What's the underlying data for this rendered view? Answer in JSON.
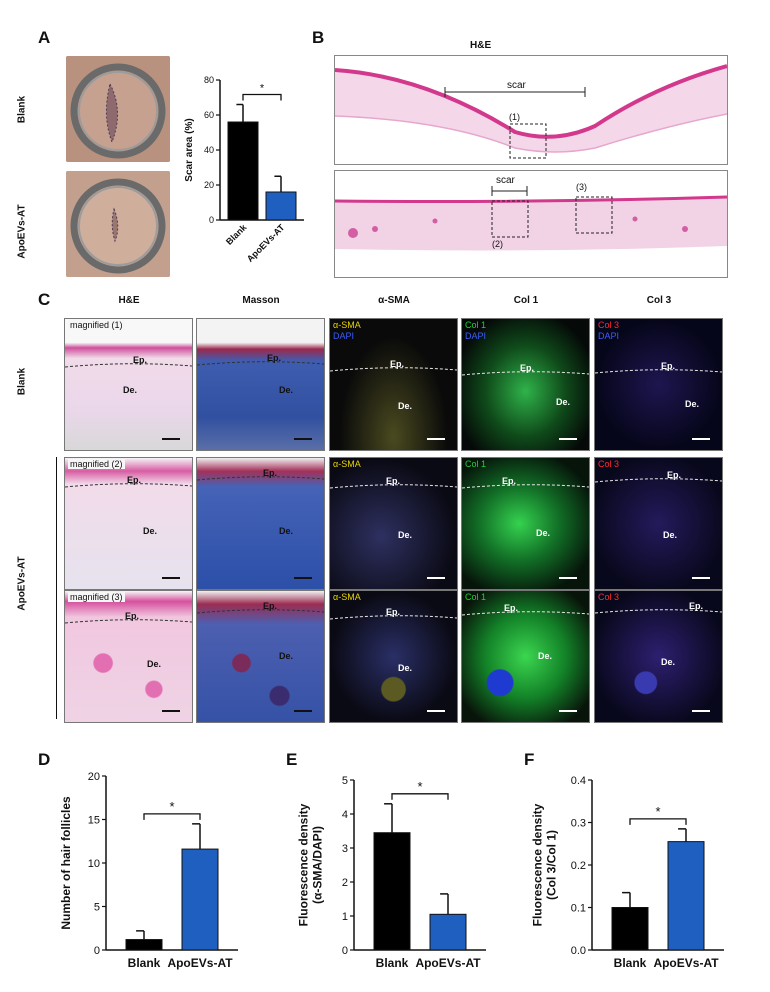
{
  "panels": {
    "A": "A",
    "B": "B",
    "C": "C",
    "D": "D",
    "E": "E",
    "F": "F"
  },
  "panel_a": {
    "row_labels": [
      "Blank",
      "ApoEVs-AT"
    ]
  },
  "panel_b": {
    "title": "H&E",
    "scar_label": "scar",
    "markers": [
      "(1)",
      "(2)",
      "(3)"
    ]
  },
  "panel_c": {
    "columns": [
      "H&E",
      "Masson",
      "α-SMA",
      "Col 1",
      "Col 3"
    ],
    "row_labels": [
      "Blank",
      "ApoEVs-AT"
    ],
    "magnified": [
      "magnified (1)",
      "magnified (2)",
      "magnified (3)"
    ],
    "channel_tags": {
      "asma": "α-SMA",
      "col1": "Col 1",
      "col3": "Col 3",
      "dapi": "DAPI"
    },
    "ep": "Ep.",
    "de": "De.",
    "colors": {
      "asma": "#e8d400",
      "col1": "#22d03a",
      "col3": "#ff2a2a",
      "dapi": "#3b5cff",
      "he": "#d77fb3",
      "masson": "#3d58a8"
    }
  },
  "chart_data": [
    {
      "panel": "A",
      "type": "bar",
      "categories": [
        "Blank",
        "ApoEVs-AT"
      ],
      "values": [
        56,
        16
      ],
      "errors": [
        10,
        9
      ],
      "colors": [
        "#000000",
        "#1f5fbf"
      ],
      "ylabel": "Scar area (%)",
      "ylim": [
        0,
        80
      ],
      "yticks": [
        0,
        20,
        40,
        60,
        80
      ],
      "significance": "*"
    },
    {
      "panel": "D",
      "type": "bar",
      "categories": [
        "Blank",
        "ApoEVs-AT"
      ],
      "values": [
        1.2,
        11.6
      ],
      "errors": [
        1.0,
        2.9
      ],
      "colors": [
        "#000000",
        "#1f5fbf"
      ],
      "ylabel": "Number of hair follicles",
      "ylim": [
        0,
        20
      ],
      "yticks": [
        0,
        5,
        10,
        15,
        20
      ],
      "significance": "*"
    },
    {
      "panel": "E",
      "type": "bar",
      "categories": [
        "Blank",
        "ApoEVs-AT"
      ],
      "values": [
        3.45,
        1.05
      ],
      "errors": [
        0.85,
        0.6
      ],
      "colors": [
        "#000000",
        "#1f5fbf"
      ],
      "ylabel": "Fluorescence density\n(α-SMA/DAPI)",
      "ylim": [
        0,
        5
      ],
      "yticks": [
        0,
        1,
        2,
        3,
        4,
        5
      ],
      "significance": "*"
    },
    {
      "panel": "F",
      "type": "bar",
      "categories": [
        "Blank",
        "ApoEVs-AT"
      ],
      "values": [
        0.1,
        0.255
      ],
      "errors": [
        0.035,
        0.03
      ],
      "colors": [
        "#000000",
        "#1f5fbf"
      ],
      "ylabel": "Fluorescence density\n(Col 3/Col 1)",
      "ylim": [
        0,
        0.4
      ],
      "yticks": [
        0.0,
        0.1,
        0.2,
        0.3,
        0.4
      ],
      "significance": "*"
    }
  ]
}
